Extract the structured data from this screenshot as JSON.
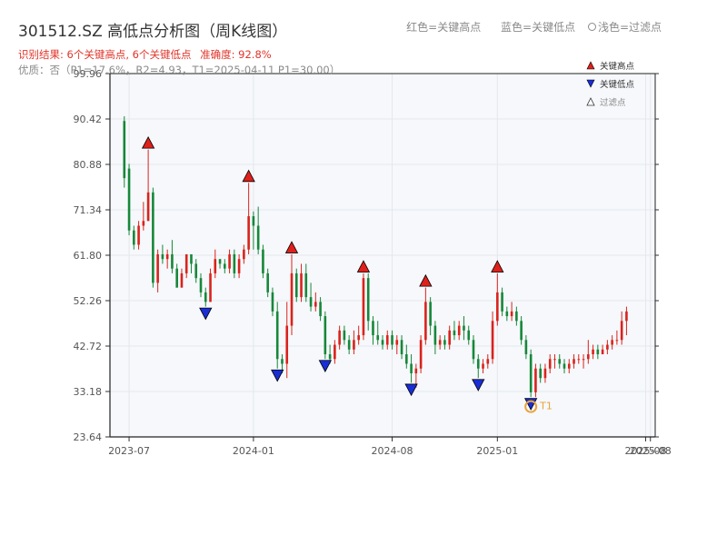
{
  "header": {
    "title": "301512.SZ 高低点分析图（周K线图）",
    "result_label": "识别结果: 6个关键高点, 6个关键低点",
    "accuracy_label": "准确度: 92.8%",
    "quality_label": "优质：否（P1=17.6%，R2=4.93，T1=2025-04-11 P1=30.00）",
    "legend_top": {
      "red": "红色=关键高点",
      "blue": "蓝色=关键低点",
      "light": "浅色=过滤点"
    }
  },
  "colors": {
    "up": "#d9231c",
    "down": "#16873a",
    "high_marker": "#e0201a",
    "low_marker": "#1a2ed6",
    "t1_ring": "#e8a33a",
    "plot_bg": "#f6f8fb",
    "grid": "#e4e7ec"
  },
  "chart_data": {
    "type": "candlestick",
    "y_ticks": [
      "23.64",
      "33.18",
      "42.72",
      "52.26",
      "61.80",
      "71.34",
      "80.88",
      "90.42",
      "99.96"
    ],
    "ylim": [
      23.64,
      99.96
    ],
    "x_ticks": [
      {
        "label": "2023-07",
        "week": 1
      },
      {
        "label": "2024-01",
        "week": 27
      },
      {
        "label": "2024-08",
        "week": 56
      },
      {
        "label": "2025-01",
        "week": 78
      },
      {
        "label": "2025-08",
        "week": 109
      },
      {
        "label": "2025-08",
        "week": 110
      }
    ],
    "xlim": [
      -3,
      111
    ],
    "candles": [
      [
        90,
        78,
        91,
        76
      ],
      [
        80,
        67,
        81,
        66
      ],
      [
        67,
        64,
        68,
        63
      ],
      [
        64,
        68,
        69,
        63
      ],
      [
        68,
        69,
        73,
        67
      ],
      [
        69,
        75,
        84,
        69
      ],
      [
        75,
        56,
        76,
        55
      ],
      [
        56,
        62,
        63,
        54
      ],
      [
        62,
        61,
        64,
        60
      ],
      [
        61,
        62,
        63,
        59
      ],
      [
        62,
        59,
        65,
        58
      ],
      [
        59,
        55,
        60,
        55
      ],
      [
        55,
        58,
        59,
        55
      ],
      [
        58,
        62,
        62,
        57
      ],
      [
        62,
        60,
        61,
        58
      ],
      [
        60,
        57,
        61,
        56
      ],
      [
        57,
        54,
        58,
        53
      ],
      [
        54,
        52,
        55,
        51
      ],
      [
        52,
        58,
        59,
        52
      ],
      [
        58,
        61,
        63,
        57
      ],
      [
        61,
        60,
        61,
        59
      ],
      [
        60,
        59,
        61,
        58
      ],
      [
        59,
        62,
        63,
        58
      ],
      [
        62,
        58,
        63,
        57
      ],
      [
        58,
        61,
        62,
        57
      ],
      [
        61,
        63,
        64,
        60
      ],
      [
        63,
        70,
        77,
        62
      ],
      [
        70,
        68,
        71,
        63
      ],
      [
        68,
        63,
        72,
        62
      ],
      [
        63,
        58,
        64,
        57
      ],
      [
        58,
        54,
        59,
        53
      ],
      [
        54,
        50,
        55,
        49
      ],
      [
        50,
        40,
        52,
        38
      ],
      [
        40,
        39,
        41,
        37
      ],
      [
        39,
        47,
        52,
        36
      ],
      [
        47,
        58,
        62,
        45
      ],
      [
        58,
        53,
        59,
        52
      ],
      [
        53,
        58,
        60,
        52
      ],
      [
        58,
        53,
        60,
        52
      ],
      [
        53,
        51,
        56,
        50
      ],
      [
        51,
        52,
        54,
        50
      ],
      [
        52,
        49,
        53,
        48
      ],
      [
        49,
        41,
        50,
        40
      ],
      [
        41,
        40,
        43,
        39
      ],
      [
        40,
        43,
        44,
        39
      ],
      [
        43,
        46,
        47,
        42
      ],
      [
        46,
        44,
        47,
        43
      ],
      [
        44,
        42,
        45,
        41
      ],
      [
        42,
        44,
        46,
        41
      ],
      [
        44,
        45,
        47,
        43
      ],
      [
        45,
        57,
        58,
        44
      ],
      [
        57,
        48,
        58,
        46
      ],
      [
        48,
        45,
        49,
        43
      ],
      [
        45,
        44,
        48,
        43
      ],
      [
        44,
        43,
        45,
        42
      ],
      [
        43,
        45,
        46,
        42
      ],
      [
        45,
        43,
        46,
        42
      ],
      [
        43,
        44,
        45,
        41
      ],
      [
        44,
        41,
        45,
        40
      ],
      [
        41,
        39,
        43,
        38
      ],
      [
        39,
        37,
        41,
        35
      ],
      [
        37,
        38,
        39,
        34
      ],
      [
        38,
        44,
        45,
        37
      ],
      [
        44,
        52,
        55,
        43
      ],
      [
        52,
        47,
        53,
        45
      ],
      [
        47,
        43,
        48,
        41
      ],
      [
        43,
        44,
        45,
        42
      ],
      [
        44,
        43,
        45,
        42
      ],
      [
        43,
        46,
        47,
        42
      ],
      [
        46,
        45,
        48,
        44
      ],
      [
        45,
        47,
        48,
        44
      ],
      [
        47,
        46,
        49,
        44
      ],
      [
        46,
        44,
        47,
        43
      ],
      [
        44,
        40,
        45,
        39
      ],
      [
        40,
        38,
        41,
        36
      ],
      [
        38,
        39,
        40,
        37
      ],
      [
        39,
        40,
        41,
        38
      ],
      [
        40,
        48,
        50,
        39
      ],
      [
        48,
        54,
        58,
        47
      ],
      [
        54,
        50,
        55,
        49
      ],
      [
        50,
        49,
        51,
        48
      ],
      [
        49,
        50,
        52,
        48
      ],
      [
        50,
        48,
        51,
        47
      ],
      [
        48,
        44,
        49,
        43
      ],
      [
        44,
        41,
        45,
        40
      ],
      [
        41,
        33,
        42,
        32
      ],
      [
        33,
        38,
        39,
        32
      ],
      [
        38,
        36,
        39,
        35
      ],
      [
        36,
        38,
        39,
        35
      ],
      [
        38,
        40,
        41,
        37
      ],
      [
        40,
        40,
        41,
        38
      ],
      [
        40,
        39,
        41,
        38
      ],
      [
        39,
        38,
        40,
        37
      ],
      [
        38,
        39,
        40,
        37
      ],
      [
        39,
        40,
        41,
        38
      ],
      [
        40,
        40,
        41,
        39
      ],
      [
        40,
        40,
        41,
        38
      ],
      [
        40,
        41,
        44,
        39
      ],
      [
        41,
        42,
        43,
        40
      ],
      [
        42,
        41,
        43,
        40
      ],
      [
        41,
        42,
        43,
        41
      ],
      [
        42,
        43,
        44,
        41
      ],
      [
        43,
        44,
        45,
        42
      ],
      [
        44,
        44,
        46,
        43
      ],
      [
        44,
        48,
        50,
        43
      ],
      [
        48,
        50,
        51,
        45
      ]
    ],
    "key_highs": [
      {
        "week": 5,
        "price": 84
      },
      {
        "week": 26,
        "price": 77
      },
      {
        "week": 35,
        "price": 62
      },
      {
        "week": 50,
        "price": 58
      },
      {
        "week": 63,
        "price": 55
      },
      {
        "week": 78,
        "price": 58
      }
    ],
    "key_lows": [
      {
        "week": 17,
        "price": 51
      },
      {
        "week": 32,
        "price": 38
      },
      {
        "week": 42,
        "price": 40
      },
      {
        "week": 60,
        "price": 35
      },
      {
        "week": 74,
        "price": 36
      },
      {
        "week": 85,
        "price": 32
      }
    ],
    "t1": {
      "week": 85,
      "price": 30,
      "label": "T1"
    },
    "legend": [
      {
        "symbol": "triangle-up",
        "label": "关键高点"
      },
      {
        "symbol": "triangle-down",
        "label": "关键低点"
      },
      {
        "symbol": "triangle-up-hollow",
        "label": "过滤点"
      }
    ]
  }
}
